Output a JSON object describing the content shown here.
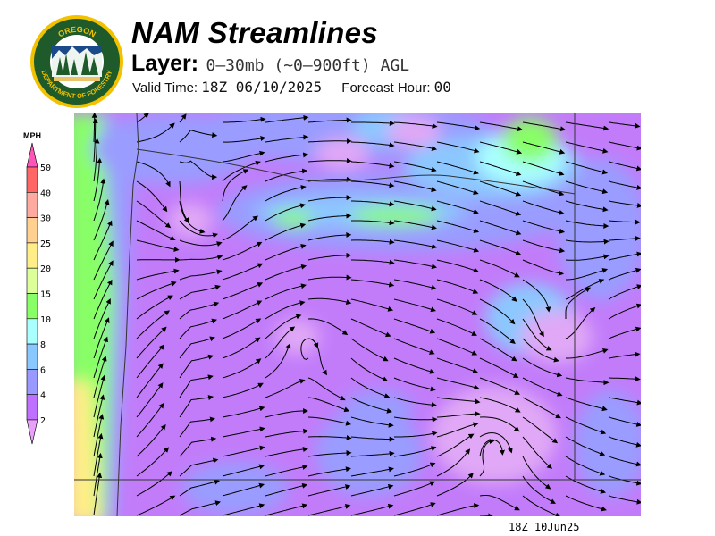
{
  "header": {
    "title": "NAM Streamlines",
    "layer_label": "Layer:",
    "layer_value": "0–30mb (~0–900ft) AGL",
    "valid_time_label": "Valid Time:",
    "valid_time_value": "18Z 06/10/2025",
    "forecast_hour_label": "Forecast Hour:",
    "forecast_hour_value": "00"
  },
  "logo": {
    "top_text": "OREGON",
    "bottom_text": "DEPARTMENT OF FORESTRY",
    "colors": {
      "ring": "#1e5a2a",
      "border": "#f2c200",
      "water": "#1a4a8a"
    }
  },
  "legend": {
    "unit": "MPH",
    "labels": [
      "50",
      "40",
      "30",
      "25",
      "20",
      "15",
      "10",
      "8",
      "6",
      "4",
      "2"
    ],
    "colors": {
      "above_max": "#ff55bb",
      "bands": [
        "#ff6666",
        "#ffaaa0",
        "#ffd090",
        "#ffee88",
        "#ddff99",
        "#88ff66",
        "#aaffff",
        "#88c8ff",
        "#9999ff",
        "#c070ff"
      ],
      "below_min": "#e8a0f8"
    }
  },
  "map": {
    "description_colors": {
      "base": "#c27cfa",
      "light_purple": "#e0a8f6",
      "blue": "#9a9cff",
      "light_blue": "#8cc8ff",
      "cyan": "#aaffff",
      "green": "#88ff66",
      "light_green": "#ddff99",
      "yellow": "#ffee88"
    }
  },
  "footer": {
    "stamp": "18Z 10Jun25"
  }
}
